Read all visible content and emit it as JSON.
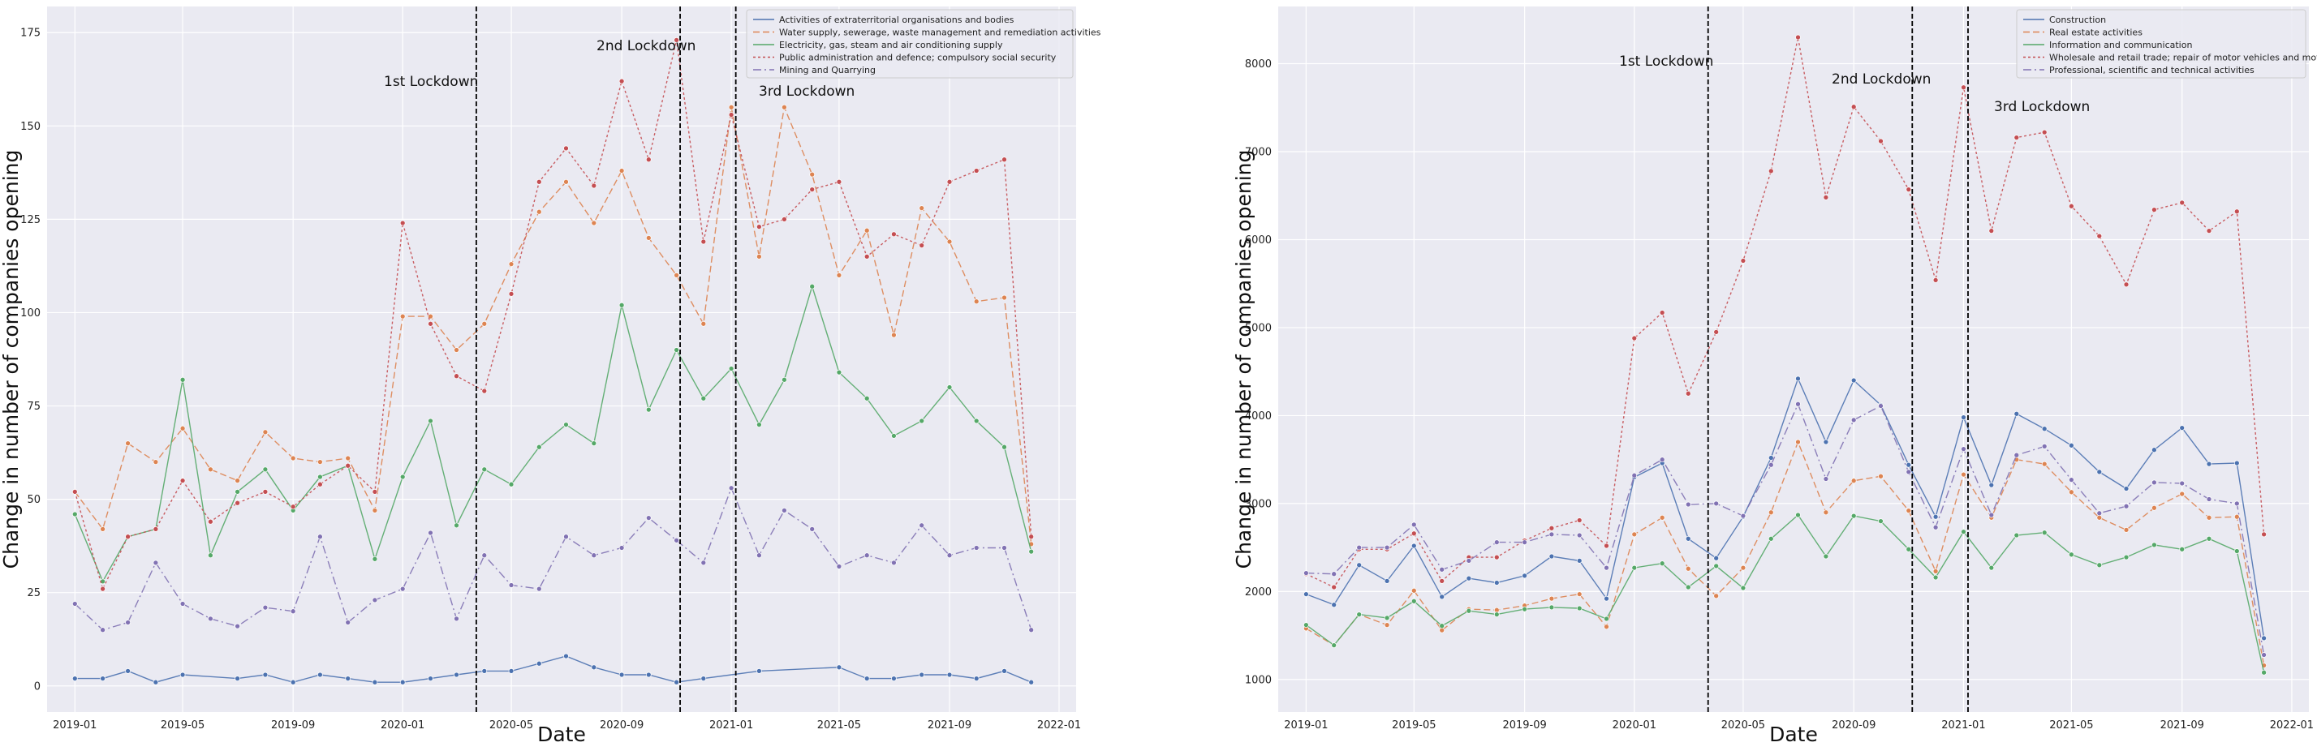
{
  "chart_data": [
    {
      "type": "line",
      "xlabel": "Date",
      "ylabel": "Change in number of companies opening",
      "x_ticks": [
        "2019-01",
        "2019-05",
        "2019-09",
        "2020-01",
        "2020-05",
        "2020-09",
        "2021-01",
        "2021-05",
        "2021-09",
        "2022-01"
      ],
      "xlim": [
        "2018-12-01",
        "2022-01-20"
      ],
      "ylim": [
        -7,
        182
      ],
      "y_ticks": [
        0,
        25,
        50,
        75,
        100,
        125,
        150,
        175
      ],
      "grid": true,
      "legend_position": "top-right",
      "x": [
        "2019-01",
        "2019-02",
        "2019-03",
        "2019-04",
        "2019-05",
        "2019-06",
        "2019-07",
        "2019-08",
        "2019-09",
        "2019-10",
        "2019-11",
        "2019-12",
        "2020-01",
        "2020-02",
        "2020-03",
        "2020-04",
        "2020-05",
        "2020-06",
        "2020-07",
        "2020-08",
        "2020-09",
        "2020-10",
        "2020-11",
        "2020-12",
        "2021-01",
        "2021-02",
        "2021-03",
        "2021-04",
        "2021-05",
        "2021-06",
        "2021-07",
        "2021-08",
        "2021-09",
        "2021-10",
        "2021-11",
        "2021-12"
      ],
      "series": [
        {
          "name": "Activities of extraterritorial organisations and bodies",
          "color": "#4c72b0",
          "dash": "",
          "values": [
            2,
            2,
            4,
            1,
            3,
            null,
            2,
            3,
            1,
            3,
            2,
            1,
            1,
            2,
            3,
            4,
            4,
            6,
            8,
            5,
            3,
            3,
            1,
            2,
            null,
            4,
            null,
            null,
            5,
            2,
            2,
            3,
            3,
            2,
            4,
            1
          ]
        },
        {
          "name": "Water supply, sewerage, waste management and remediation activities",
          "color": "#dd8452",
          "dash": "8,4",
          "values": [
            52,
            42,
            65,
            60,
            69,
            58,
            55,
            68,
            61,
            60,
            61,
            47,
            99,
            99,
            90,
            97,
            113,
            127,
            135,
            124,
            138,
            120,
            110,
            97,
            155,
            115,
            155,
            137,
            110,
            122,
            94,
            128,
            119,
            103,
            104,
            38
          ]
        },
        {
          "name": "Electricity, gas, steam and air conditioning supply",
          "color": "#55a868",
          "dash": "",
          "values": [
            46,
            28,
            40,
            42,
            82,
            35,
            52,
            58,
            47,
            56,
            59,
            34,
            56,
            71,
            43,
            58,
            54,
            64,
            70,
            65,
            102,
            74,
            90,
            77,
            85,
            70,
            82,
            107,
            84,
            77,
            67,
            71,
            80,
            71,
            64,
            36
          ]
        },
        {
          "name": "Public administration and defence; compulsory social security",
          "color": "#c44e52",
          "dash": "3,3",
          "values": [
            52,
            26,
            40,
            42,
            55,
            44,
            49,
            52,
            48,
            54,
            59,
            52,
            124,
            97,
            83,
            79,
            105,
            135,
            144,
            134,
            162,
            141,
            173,
            119,
            153,
            123,
            125,
            133,
            135,
            115,
            121,
            118,
            135,
            138,
            141,
            40
          ]
        },
        {
          "name": "Mining and Quarrying",
          "color": "#8172b3",
          "dash": "10,4,2,4",
          "values": [
            22,
            15,
            17,
            33,
            22,
            18,
            16,
            21,
            20,
            40,
            17,
            23,
            26,
            41,
            18,
            35,
            27,
            26,
            40,
            35,
            37,
            45,
            39,
            33,
            53,
            35,
            47,
            42,
            32,
            35,
            33,
            43,
            35,
            37,
            37,
            15
          ]
        }
      ],
      "vlines": [
        {
          "date": "2020-03-23",
          "label": "1st Lockdown"
        },
        {
          "date": "2020-11-05",
          "label": "2nd Lockdown"
        },
        {
          "date": "2021-01-06",
          "label": "3rd Lockdown"
        }
      ]
    },
    {
      "type": "line",
      "xlabel": "Date",
      "ylabel": "Change in number of companies opening",
      "x_ticks": [
        "2019-01",
        "2019-05",
        "2019-09",
        "2020-01",
        "2020-05",
        "2020-09",
        "2021-01",
        "2021-05",
        "2021-09",
        "2022-01"
      ],
      "xlim": [
        "2018-12-01",
        "2022-01-20"
      ],
      "ylim": [
        630,
        8650
      ],
      "y_ticks": [
        1000,
        2000,
        3000,
        4000,
        5000,
        6000,
        7000,
        8000
      ],
      "grid": true,
      "legend_position": "top-right",
      "x": [
        "2019-01",
        "2019-02",
        "2019-03",
        "2019-04",
        "2019-05",
        "2019-06",
        "2019-07",
        "2019-08",
        "2019-09",
        "2019-10",
        "2019-11",
        "2019-12",
        "2020-01",
        "2020-02",
        "2020-03",
        "2020-04",
        "2020-05",
        "2020-06",
        "2020-07",
        "2020-08",
        "2020-09",
        "2020-10",
        "2020-11",
        "2020-12",
        "2021-01",
        "2021-02",
        "2021-03",
        "2021-04",
        "2021-05",
        "2021-06",
        "2021-07",
        "2021-08",
        "2021-09",
        "2021-10",
        "2021-11",
        "2021-12"
      ],
      "series": [
        {
          "name": "Construction",
          "color": "#4c72b0",
          "dash": "",
          "values": [
            1970,
            1850,
            2300,
            2120,
            2520,
            1940,
            2150,
            2100,
            2180,
            2400,
            2350,
            1920,
            3300,
            3460,
            2600,
            2380,
            2850,
            3520,
            4420,
            3700,
            4400,
            4120,
            3440,
            2850,
            3980,
            3210,
            4020,
            3850,
            3660,
            3360,
            3170,
            3610,
            3860,
            3450,
            3460,
            1470
          ]
        },
        {
          "name": "Real estate activities",
          "color": "#dd8452",
          "dash": "8,4",
          "values": [
            1580,
            1390,
            1740,
            1620,
            2010,
            1560,
            1800,
            1790,
            1840,
            1920,
            1970,
            1600,
            2650,
            2840,
            2260,
            1950,
            2270,
            2900,
            3700,
            2900,
            3260,
            3310,
            2920,
            2230,
            3330,
            2840,
            3500,
            3450,
            3130,
            2840,
            2700,
            2950,
            3110,
            2840,
            2850,
            1160
          ]
        },
        {
          "name": "Information and communication",
          "color": "#55a868",
          "dash": "",
          "values": [
            1620,
            1390,
            1740,
            1700,
            1890,
            1610,
            1780,
            1740,
            1800,
            1820,
            1810,
            1690,
            2270,
            2320,
            2050,
            2290,
            2040,
            2600,
            2870,
            2400,
            2860,
            2800,
            2480,
            2160,
            2680,
            2270,
            2640,
            2670,
            2420,
            2300,
            2390,
            2530,
            2480,
            2600,
            2460,
            1080
          ]
        },
        {
          "name": "Wholesale and retail trade; repair of motor vehicles and motorcycles",
          "color": "#c44e52",
          "dash": "3,3",
          "values": [
            2200,
            2050,
            2480,
            2480,
            2660,
            2120,
            2390,
            2390,
            2580,
            2720,
            2810,
            2520,
            4880,
            5170,
            4250,
            4950,
            5760,
            6780,
            8300,
            6480,
            7510,
            7120,
            6570,
            5540,
            7730,
            6100,
            7160,
            7220,
            6380,
            6040,
            5490,
            6340,
            6420,
            6100,
            6320,
            2650
          ]
        },
        {
          "name": "Professional, scientific and technical activities",
          "color": "#8172b3",
          "dash": "10,4,2,4",
          "values": [
            2210,
            2200,
            2500,
            2500,
            2760,
            2250,
            2350,
            2560,
            2560,
            2650,
            2640,
            2270,
            3320,
            3500,
            2990,
            3000,
            2860,
            3440,
            4130,
            3280,
            3950,
            4110,
            3360,
            2730,
            3620,
            2870,
            3550,
            3650,
            3270,
            2890,
            2970,
            3240,
            3230,
            3050,
            3000,
            1280
          ]
        }
      ],
      "vlines": [
        {
          "date": "2020-03-23",
          "label": "1st Lockdown"
        },
        {
          "date": "2020-11-05",
          "label": "2nd Lockdown"
        },
        {
          "date": "2021-01-06",
          "label": "3rd Lockdown"
        }
      ]
    }
  ]
}
